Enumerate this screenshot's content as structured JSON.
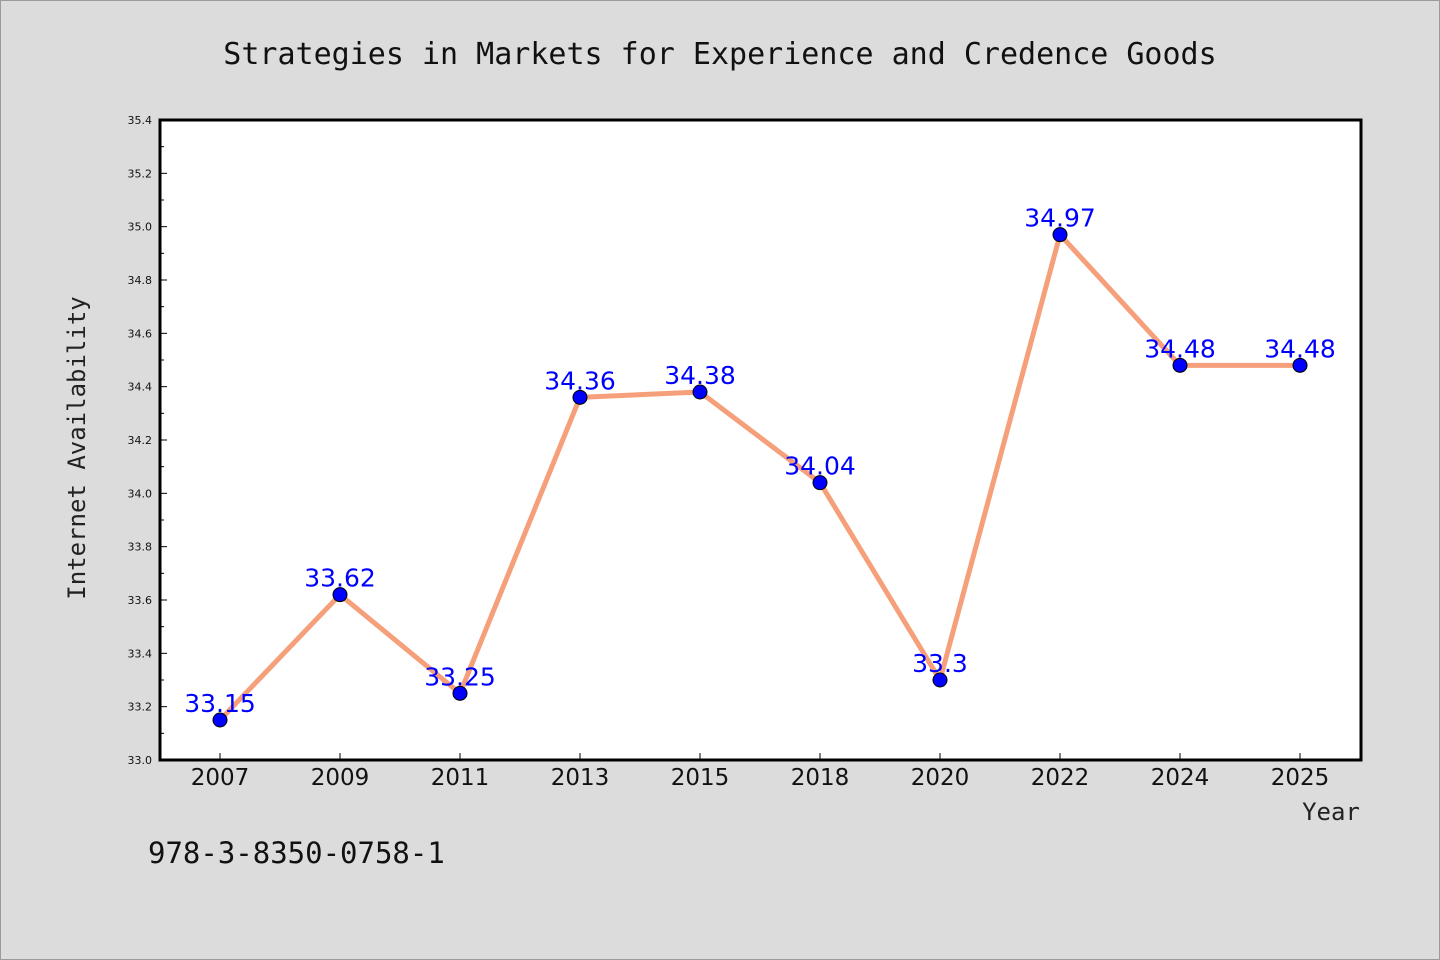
{
  "chart_data": {
    "type": "line",
    "title": "Strategies in Markets for Experience and Credence Goods",
    "xlabel": "Year",
    "ylabel": "Internet Availability",
    "categories": [
      "2007",
      "2009",
      "2011",
      "2013",
      "2015",
      "2018",
      "2020",
      "2022",
      "2024",
      "2025"
    ],
    "series": [
      {
        "values": [
          33.15,
          33.62,
          33.25,
          34.36,
          34.38,
          34.04,
          33.3,
          34.97,
          34.48,
          34.48
        ],
        "labels": [
          "33.15",
          "33.62",
          "33.25",
          "34.36",
          "34.38",
          "34.04",
          "33.3",
          "34.97",
          "34.48",
          "34.48"
        ],
        "line_color": "#f5a07a",
        "marker_color": "#0000ff"
      }
    ],
    "ylim": [
      33.0,
      35.4
    ],
    "yticks": [
      "33.0",
      "33.2",
      "33.4",
      "33.6",
      "33.8",
      "34.0",
      "34.2",
      "34.4",
      "34.6",
      "34.8",
      "35.0",
      "35.2",
      "35.4"
    ],
    "grid": false,
    "legend": "none"
  },
  "footer": {
    "isbn": "978-3-8350-0758-1"
  },
  "colors": {
    "background": "#dcdcdc",
    "plot_area": "#ffffff",
    "axis": "#000000"
  }
}
